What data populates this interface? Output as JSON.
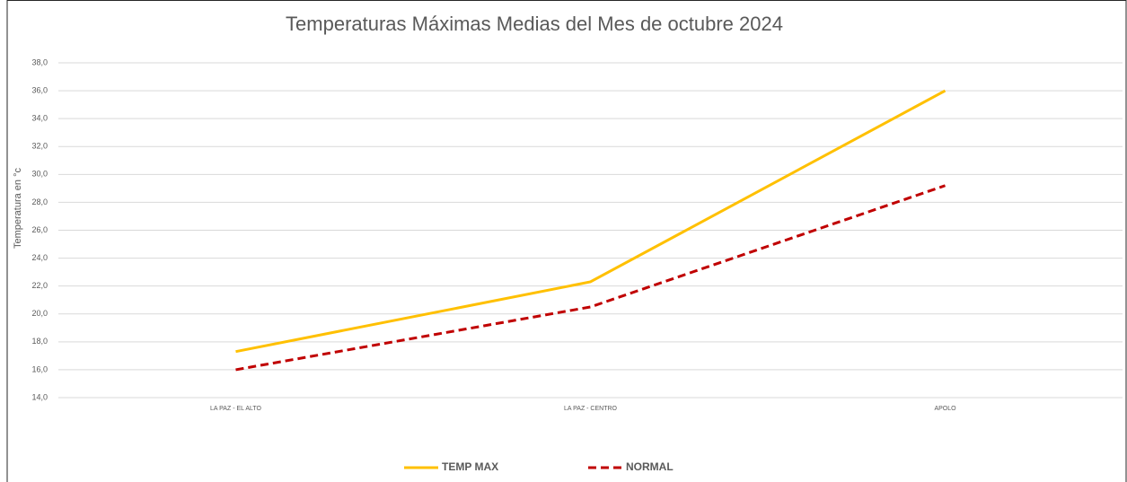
{
  "chart_data": {
    "type": "line",
    "title": "Temperaturas Máximas Medias del Mes de octubre 2024",
    "y_label": "Temperatura en °c",
    "categories": [
      "LA PAZ - EL ALTO",
      "LA PAZ - CENTRO",
      "APOLO"
    ],
    "series": [
      {
        "name": "TEMP MAX",
        "color": "#FFC000",
        "style": "solid",
        "values": [
          17.3,
          22.3,
          36.0
        ]
      },
      {
        "name": "NORMAL",
        "color": "#C00000",
        "style": "dashed",
        "values": [
          16.0,
          20.5,
          29.2
        ]
      }
    ],
    "ylim": [
      14,
      38
    ],
    "yticks": [
      {
        "value": 14,
        "label": "14,0"
      },
      {
        "value": 16,
        "label": "16,0"
      },
      {
        "value": 18,
        "label": "18,0"
      },
      {
        "value": 20,
        "label": "20,0"
      },
      {
        "value": 22,
        "label": "22,0"
      },
      {
        "value": 24,
        "label": "24,0"
      },
      {
        "value": 26,
        "label": "26,0"
      },
      {
        "value": 28,
        "label": "28,0"
      },
      {
        "value": 30,
        "label": "30,0"
      },
      {
        "value": 32,
        "label": "32,0"
      },
      {
        "value": 34,
        "label": "34,0"
      },
      {
        "value": 36,
        "label": "36,0"
      },
      {
        "value": 38,
        "label": "38,0"
      }
    ],
    "grid": true,
    "legend": "bottom"
  }
}
